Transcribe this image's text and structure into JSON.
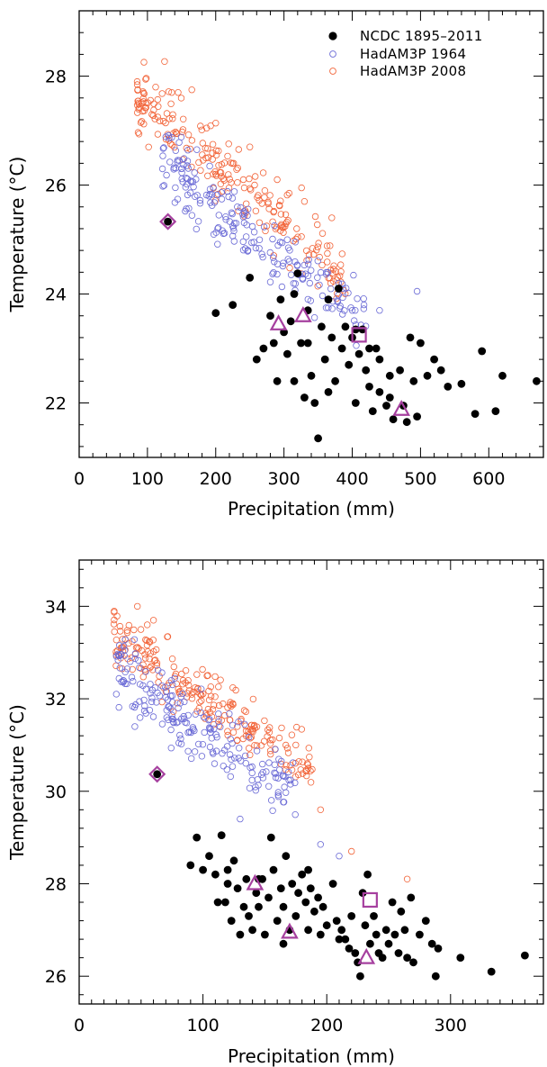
{
  "chart_data": [
    {
      "type": "scatter",
      "xlabel": "Precipitation (mm)",
      "ylabel": "Temperature (°C)",
      "xlim": [
        0,
        680
      ],
      "ylim": [
        21.0,
        29.2
      ],
      "xticks": [
        0,
        100,
        200,
        300,
        400,
        500,
        600
      ],
      "yticks": [
        22,
        24,
        26,
        28
      ],
      "x_minor_step": 20,
      "y_minor_step": 0.4,
      "legend_position": "top-right",
      "legend": [
        {
          "label": "NCDC 1895–2011",
          "marker": "filled-circle",
          "color": "#000000"
        },
        {
          "label": "HadAM3P 1964",
          "marker": "open-circle",
          "color": "#6b6bd6"
        },
        {
          "label": "HadAM3P 2008",
          "marker": "open-circle",
          "color": "#f2653a"
        }
      ],
      "series": [
        {
          "name": "HadAM3P 2008",
          "marker": "open-circle",
          "color": "#f2653a",
          "spread": 0.45,
          "cloud": {
            "count": 220,
            "x_range": [
              85,
              390
            ],
            "t_at_x0": 28.6,
            "slope": -0.011
          },
          "points": [
            [
              85,
              27.9
            ],
            [
              112,
              27.8
            ],
            [
              125,
              28.27
            ],
            [
              145,
              27.7
            ],
            [
              165,
              27.75
            ],
            [
              250,
              26.7
            ],
            [
              290,
              26.1
            ],
            [
              330,
              25.7
            ],
            [
              370,
              25.4
            ],
            [
              380,
              24.1
            ]
          ]
        },
        {
          "name": "HadAM3P 1964",
          "marker": "open-circle",
          "color": "#6b6bd6",
          "spread": 0.45,
          "cloud": {
            "count": 200,
            "x_range": [
              120,
              420
            ],
            "t_at_x0": 27.6,
            "slope": -0.0098
          },
          "points": [
            [
              150,
              26.3
            ],
            [
              190,
              25.8
            ],
            [
              230,
              25.3
            ],
            [
              380,
              24.2
            ],
            [
              440,
              23.7
            ],
            [
              495,
              24.05
            ]
          ]
        },
        {
          "name": "NCDC 1895–2011",
          "marker": "filled-circle",
          "color": "#000000",
          "points": [
            [
              130,
              25.33
            ],
            [
              200,
              23.65
            ],
            [
              225,
              23.8
            ],
            [
              250,
              24.3
            ],
            [
              260,
              22.8
            ],
            [
              270,
              23.0
            ],
            [
              280,
              23.6
            ],
            [
              285,
              23.1
            ],
            [
              290,
              22.4
            ],
            [
              300,
              23.3
            ],
            [
              305,
              22.9
            ],
            [
              310,
              23.5
            ],
            [
              315,
              24.0
            ],
            [
              320,
              24.38
            ],
            [
              325,
              23.1
            ],
            [
              330,
              22.1
            ],
            [
              335,
              23.7
            ],
            [
              340,
              22.5
            ],
            [
              345,
              22.0
            ],
            [
              350,
              21.35
            ],
            [
              355,
              23.4
            ],
            [
              360,
              22.8
            ],
            [
              365,
              23.9
            ],
            [
              370,
              23.2
            ],
            [
              375,
              22.4
            ],
            [
              380,
              24.1
            ],
            [
              385,
              23.0
            ],
            [
              390,
              23.4
            ],
            [
              395,
              22.7
            ],
            [
              400,
              23.2
            ],
            [
              405,
              22.0
            ],
            [
              410,
              22.9
            ],
            [
              415,
              23.35
            ],
            [
              420,
              22.6
            ],
            [
              425,
              22.3
            ],
            [
              430,
              21.85
            ],
            [
              435,
              23.0
            ],
            [
              440,
              22.2
            ],
            [
              450,
              21.95
            ],
            [
              455,
              22.5
            ],
            [
              460,
              21.7
            ],
            [
              470,
              22.6
            ],
            [
              475,
              21.95
            ],
            [
              480,
              21.65
            ],
            [
              485,
              23.2
            ],
            [
              490,
              22.4
            ],
            [
              495,
              21.75
            ],
            [
              500,
              23.1
            ],
            [
              510,
              22.5
            ],
            [
              520,
              22.8
            ],
            [
              530,
              22.6
            ],
            [
              540,
              22.3
            ],
            [
              560,
              22.35
            ],
            [
              580,
              21.8
            ],
            [
              590,
              22.95
            ],
            [
              610,
              21.85
            ],
            [
              620,
              22.5
            ],
            [
              670,
              22.4
            ],
            [
              440,
              22.8
            ],
            [
              405,
              23.35
            ],
            [
              315,
              22.4
            ],
            [
              295,
              23.9
            ],
            [
              365,
              22.2
            ],
            [
              425,
              23.0
            ],
            [
              335,
              23.1
            ],
            [
              455,
              22.1
            ]
          ]
        }
      ],
      "highlights": [
        {
          "shape": "diamond",
          "x": 130,
          "y": 25.33
        },
        {
          "shape": "triangle",
          "x": 292,
          "y": 23.45
        },
        {
          "shape": "triangle",
          "x": 328,
          "y": 23.6
        },
        {
          "shape": "square",
          "x": 410,
          "y": 23.25
        },
        {
          "shape": "triangle",
          "x": 472,
          "y": 21.88
        }
      ],
      "highlight_color": "#a6409f"
    },
    {
      "type": "scatter",
      "xlabel": "Precipitation (mm)",
      "ylabel": "Temperature (°C)",
      "xlim": [
        0,
        375
      ],
      "ylim": [
        25.4,
        35.0
      ],
      "xticks": [
        0,
        100,
        200,
        300
      ],
      "yticks": [
        26,
        28,
        30,
        32,
        34
      ],
      "x_minor_step": 10,
      "y_minor_step": 0.4,
      "series": [
        {
          "name": "HadAM3P 2008",
          "marker": "open-circle",
          "color": "#f2653a",
          "spread": 0.45,
          "cloud": {
            "count": 220,
            "x_range": [
              28,
              190
            ],
            "t_at_x0": 33.9,
            "slope": -0.0185
          },
          "points": [
            [
              30,
              32.95
            ],
            [
              40,
              33.2
            ],
            [
              47,
              34.0
            ],
            [
              55,
              33.6
            ],
            [
              60,
              33.7
            ],
            [
              175,
              31.0
            ],
            [
              185,
              30.5
            ],
            [
              195,
              29.6
            ],
            [
              220,
              28.7
            ],
            [
              265,
              28.1
            ]
          ]
        },
        {
          "name": "HadAM3P 1964",
          "marker": "open-circle",
          "color": "#6b6bd6",
          "spread": 0.5,
          "cloud": {
            "count": 200,
            "x_range": [
              30,
              175
            ],
            "t_at_x0": 33.2,
            "slope": -0.019
          },
          "points": [
            [
              30,
              32.1
            ],
            [
              45,
              31.4
            ],
            [
              195,
              28.85
            ],
            [
              210,
              28.6
            ],
            [
              130,
              29.4
            ]
          ]
        },
        {
          "name": "NCDC 1895–2011",
          "marker": "filled-circle",
          "color": "#000000",
          "points": [
            [
              63,
              30.37
            ],
            [
              90,
              28.4
            ],
            [
              95,
              29.0
            ],
            [
              100,
              28.3
            ],
            [
              105,
              28.6
            ],
            [
              110,
              28.2
            ],
            [
              112,
              27.6
            ],
            [
              115,
              29.05
            ],
            [
              118,
              27.6
            ],
            [
              120,
              28.0
            ],
            [
              123,
              27.2
            ],
            [
              125,
              28.5
            ],
            [
              128,
              27.9
            ],
            [
              130,
              26.9
            ],
            [
              133,
              27.5
            ],
            [
              135,
              28.1
            ],
            [
              137,
              27.3
            ],
            [
              140,
              27.0
            ],
            [
              143,
              27.8
            ],
            [
              145,
              27.5
            ],
            [
              148,
              28.1
            ],
            [
              150,
              26.9
            ],
            [
              153,
              27.7
            ],
            [
              155,
              29.0
            ],
            [
              157,
              28.3
            ],
            [
              160,
              27.2
            ],
            [
              163,
              27.9
            ],
            [
              165,
              27.5
            ],
            [
              167,
              28.6
            ],
            [
              170,
              27.0
            ],
            [
              172,
              28.0
            ],
            [
              175,
              27.3
            ],
            [
              177,
              27.8
            ],
            [
              180,
              28.2
            ],
            [
              183,
              27.6
            ],
            [
              185,
              27.0
            ],
            [
              187,
              27.9
            ],
            [
              190,
              27.4
            ],
            [
              193,
              27.7
            ],
            [
              195,
              26.9
            ],
            [
              197,
              27.5
            ],
            [
              200,
              27.1
            ],
            [
              205,
              28.0
            ],
            [
              208,
              27.2
            ],
            [
              212,
              27.0
            ],
            [
              215,
              26.8
            ],
            [
              218,
              26.6
            ],
            [
              220,
              27.3
            ],
            [
              223,
              26.5
            ],
            [
              225,
              26.3
            ],
            [
              227,
              26.0
            ],
            [
              229,
              27.8
            ],
            [
              231,
              27.1
            ],
            [
              233,
              28.2
            ],
            [
              235,
              26.7
            ],
            [
              238,
              27.3
            ],
            [
              240,
              26.9
            ],
            [
              242,
              26.5
            ],
            [
              245,
              26.4
            ],
            [
              248,
              27.0
            ],
            [
              250,
              26.7
            ],
            [
              253,
              27.6
            ],
            [
              255,
              26.9
            ],
            [
              258,
              26.5
            ],
            [
              260,
              27.4
            ],
            [
              263,
              27.0
            ],
            [
              265,
              26.4
            ],
            [
              268,
              27.7
            ],
            [
              270,
              26.3
            ],
            [
              275,
              26.9
            ],
            [
              280,
              27.2
            ],
            [
              285,
              26.7
            ],
            [
              288,
              26.0
            ],
            [
              290,
              26.6
            ],
            [
              308,
              26.4
            ],
            [
              333,
              26.1
            ],
            [
              360,
              26.45
            ],
            [
              145,
              28.1
            ],
            [
              165,
              26.7
            ],
            [
              185,
              28.3
            ],
            [
              210,
              26.8
            ],
            [
              120,
              28.3
            ]
          ]
        }
      ],
      "highlights": [
        {
          "shape": "diamond",
          "x": 63,
          "y": 30.37
        },
        {
          "shape": "triangle",
          "x": 142,
          "y": 28.0
        },
        {
          "shape": "triangle",
          "x": 170,
          "y": 26.95
        },
        {
          "shape": "square",
          "x": 235,
          "y": 27.65
        },
        {
          "shape": "triangle",
          "x": 232,
          "y": 26.4
        }
      ],
      "highlight_color": "#a6409f"
    }
  ]
}
